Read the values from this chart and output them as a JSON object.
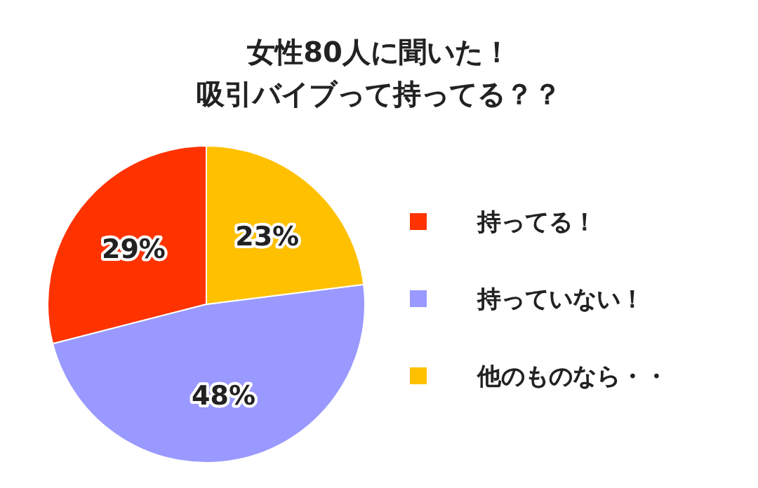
{
  "chart_data": {
    "type": "pie",
    "title": "女性80人に聞いた！",
    "subtitle": "吸引バイブって持ってる？？",
    "categories": [
      "持ってる！",
      "持っていない！",
      "他のものなら・・"
    ],
    "values": [
      29,
      48,
      23
    ],
    "colors": [
      "#ff3300",
      "#9999ff",
      "#ffc000"
    ],
    "value_labels": [
      "29%",
      "48%",
      "23%"
    ],
    "legend": "right"
  }
}
